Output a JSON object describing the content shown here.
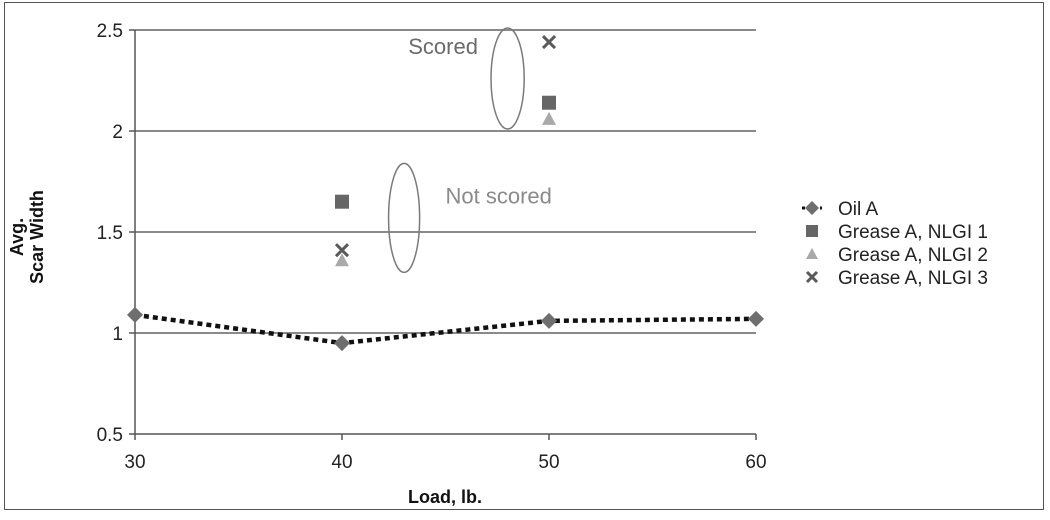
{
  "chart_data": {
    "type": "scatter",
    "xlabel": "Load, lb.",
    "ylabel": "Avg. Scar Width",
    "xlim": [
      30,
      60
    ],
    "ylim": [
      0.5,
      2.5
    ],
    "x_ticks": [
      "30",
      "40",
      "50",
      "60"
    ],
    "y_ticks": [
      "0.5",
      "1",
      "1.5",
      "2",
      "2.5"
    ],
    "grid": "horizontal",
    "legend_position": "right",
    "series": [
      {
        "name": "Oil A",
        "marker": "diamond",
        "color": "#6e6e6e",
        "line": "dotted",
        "points": [
          {
            "x": 30,
            "y": 1.09
          },
          {
            "x": 40,
            "y": 0.95
          },
          {
            "x": 50,
            "y": 1.06
          },
          {
            "x": 60,
            "y": 1.07
          }
        ]
      },
      {
        "name": "Grease A, NLGI 1",
        "marker": "square",
        "color": "#666666",
        "points": [
          {
            "x": 40,
            "y": 1.65
          },
          {
            "x": 50,
            "y": 2.14
          }
        ]
      },
      {
        "name": "Grease A, NLGI 2",
        "marker": "triangle",
        "color": "#a9a9a9",
        "points": [
          {
            "x": 40,
            "y": 1.36
          },
          {
            "x": 50,
            "y": 2.06
          }
        ]
      },
      {
        "name": "Grease A, NLGI 3",
        "marker": "x",
        "color": "#5a5a5a",
        "points": [
          {
            "x": 40,
            "y": 1.41
          },
          {
            "x": 50,
            "y": 2.44
          }
        ]
      }
    ],
    "annotations": [
      {
        "text": "Scored",
        "x": 43.2,
        "y": 2.38,
        "color": "#6b6b6b"
      },
      {
        "text": "Not scored",
        "x": 45,
        "y": 1.64,
        "color": "#8a8a8a"
      }
    ],
    "ellipses": [
      {
        "name": "scored-ellipse",
        "cx": 48,
        "cy": 2.26,
        "rx": 0.8,
        "ry": 0.25
      },
      {
        "name": "not-scored-ellipse",
        "cx": 43,
        "cy": 1.57,
        "rx": 0.75,
        "ry": 0.27
      }
    ]
  }
}
